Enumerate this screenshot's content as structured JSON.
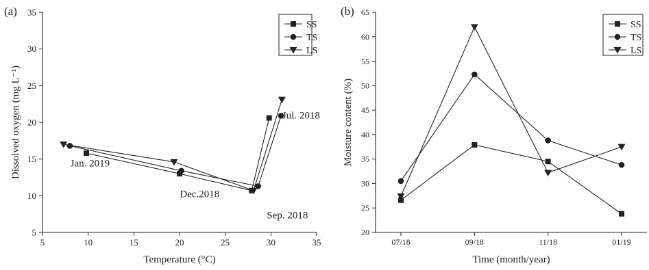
{
  "chart_data": [
    {
      "type": "line",
      "panel_label": "(a)",
      "xlabel": "Temperature (°C)",
      "ylabel": "Dissolved oxygen (mg L⁻¹)",
      "xlim": [
        5,
        35
      ],
      "ylim": [
        5,
        35
      ],
      "xticks": [
        "5",
        "10",
        "15",
        "20",
        "25",
        "30",
        "35"
      ],
      "yticks": [
        "5",
        "10",
        "15",
        "20",
        "25",
        "30",
        "35"
      ],
      "legend_position": "top-right",
      "series": [
        {
          "name": "SS",
          "marker": "square",
          "points": [
            [
              9.8,
              15.8
            ],
            [
              20.0,
              13.0
            ],
            [
              27.9,
              10.7
            ],
            [
              29.8,
              20.6
            ]
          ]
        },
        {
          "name": "TS",
          "marker": "circle",
          "points": [
            [
              8.0,
              16.8
            ],
            [
              20.2,
              13.4
            ],
            [
              28.6,
              11.3
            ],
            [
              31.1,
              20.9
            ]
          ]
        },
        {
          "name": "LS",
          "marker": "triangle-down",
          "points": [
            [
              7.3,
              17.0
            ],
            [
              19.4,
              14.6
            ],
            [
              28.1,
              10.7
            ],
            [
              31.2,
              23.1
            ]
          ]
        }
      ],
      "annotations": [
        {
          "text": "Jan. 2019",
          "x": 10.2,
          "y": 14.0
        },
        {
          "text": "Dec.2018",
          "x": 22.2,
          "y": 9.8
        },
        {
          "text": "Sep. 2018",
          "x": 31.8,
          "y": 6.9
        },
        {
          "text": "Jul. 2018",
          "x": 33.3,
          "y": 20.5
        }
      ]
    },
    {
      "type": "line",
      "panel_label": "(b)",
      "xlabel": "Time (month/year)",
      "ylabel": "Moisture content (%)",
      "categories": [
        "07/18",
        "09/18",
        "11/18",
        "01/19"
      ],
      "ylim": [
        20,
        65
      ],
      "yticks": [
        "20",
        "25",
        "30",
        "35",
        "40",
        "45",
        "50",
        "55",
        "60",
        "65"
      ],
      "legend_position": "top-right",
      "series": [
        {
          "name": "SS",
          "marker": "square",
          "values": [
            26.6,
            37.9,
            34.5,
            23.8
          ]
        },
        {
          "name": "TS",
          "marker": "circle",
          "values": [
            30.5,
            52.3,
            38.8,
            33.8
          ]
        },
        {
          "name": "LS",
          "marker": "triangle-down",
          "values": [
            27.4,
            62.0,
            32.2,
            37.5
          ]
        }
      ]
    }
  ]
}
